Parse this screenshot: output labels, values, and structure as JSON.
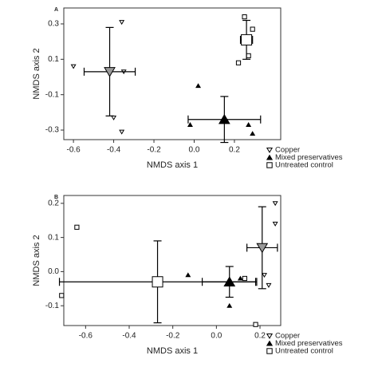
{
  "chart_data": [
    {
      "type": "scatter",
      "panel_label": "A",
      "xlabel": "NMDS axis 1",
      "ylabel": "NMDS axis 2",
      "xlim": [
        -0.648,
        0.43
      ],
      "ylim": [
        -0.354,
        0.39
      ],
      "xticks": [
        -0.6,
        -0.4,
        -0.2,
        {
          "value": 0,
          "label": "0.0"
        },
        0.2
      ],
      "yticks": [
        -0.3,
        -0.1,
        0.1,
        0.3
      ],
      "series": [
        {
          "name": "Copper",
          "marker": "down-triangle",
          "color": "#999999",
          "point_fill": "#ffffff",
          "x": [
            -0.6,
            -0.36,
            -0.35,
            -0.4,
            -0.36
          ],
          "y": [
            0.06,
            0.31,
            0.03,
            -0.23,
            -0.31
          ],
          "centroid_x": -0.42,
          "centroid_y": 0.03,
          "centroid_xerr": 0.127,
          "centroid_yerr": 0.25
        },
        {
          "name": "Mixed preservatives",
          "marker": "up-triangle",
          "color": "#000000",
          "point_fill": "#000000",
          "x": [
            0.02,
            -0.02,
            0.27,
            0.29
          ],
          "y": [
            -0.05,
            -0.27,
            -0.27,
            -0.32
          ],
          "centroid_x": 0.15,
          "centroid_y": -0.24,
          "centroid_xerr": 0.18,
          "centroid_yerr": 0.13
        },
        {
          "name": "Untreated control",
          "marker": "square",
          "color": "#ffffff",
          "point_fill": "#ffffff",
          "x": [
            0.25,
            0.29,
            0.22,
            0.27
          ],
          "y": [
            0.34,
            0.27,
            0.08,
            0.12
          ],
          "centroid_x": 0.26,
          "centroid_y": 0.21,
          "centroid_xerr": 0.03,
          "centroid_yerr": 0.11
        }
      ]
    },
    {
      "type": "scatter",
      "panel_label": "B",
      "xlabel": "NMDS axis 1",
      "ylabel": "NMDS axis 2",
      "xlim": [
        -0.7,
        0.295
      ],
      "ylim": [
        -0.158,
        0.223
      ],
      "xticks": [
        -0.6,
        -0.4,
        -0.2,
        {
          "value": 0,
          "label": "0.0"
        },
        0.2
      ],
      "yticks": [
        -0.1,
        {
          "value": 0,
          "label": "0.0"
        },
        0.1,
        0.2
      ],
      "series": [
        {
          "name": "Copper",
          "marker": "down-triangle",
          "color": "#999999",
          "point_fill": "#ffffff",
          "x": [
            0.27,
            0.27,
            0.22,
            0.24
          ],
          "y": [
            0.2,
            0.14,
            -0.01,
            -0.04
          ],
          "centroid_x": 0.21,
          "centroid_y": 0.07,
          "centroid_xerr": 0.07,
          "centroid_yerr": 0.12
        },
        {
          "name": "Mixed preservatives",
          "marker": "up-triangle",
          "color": "#000000",
          "point_fill": "#000000",
          "x": [
            -0.13,
            0.06,
            0.11
          ],
          "y": [
            -0.01,
            -0.1,
            -0.02
          ],
          "centroid_x": 0.06,
          "centroid_y": -0.03,
          "centroid_xerr": 0.125,
          "centroid_yerr": 0.045
        },
        {
          "name": "Untreated control",
          "marker": "square",
          "color": "#ffffff",
          "point_fill": "#ffffff",
          "x": [
            -0.64,
            -0.71,
            0.18,
            0.13
          ],
          "y": [
            0.13,
            -0.07,
            -0.155,
            -0.02
          ],
          "centroid_x": -0.27,
          "centroid_y": -0.03,
          "centroid_xerr": 0.45,
          "centroid_yerr": 0.12
        }
      ]
    }
  ]
}
